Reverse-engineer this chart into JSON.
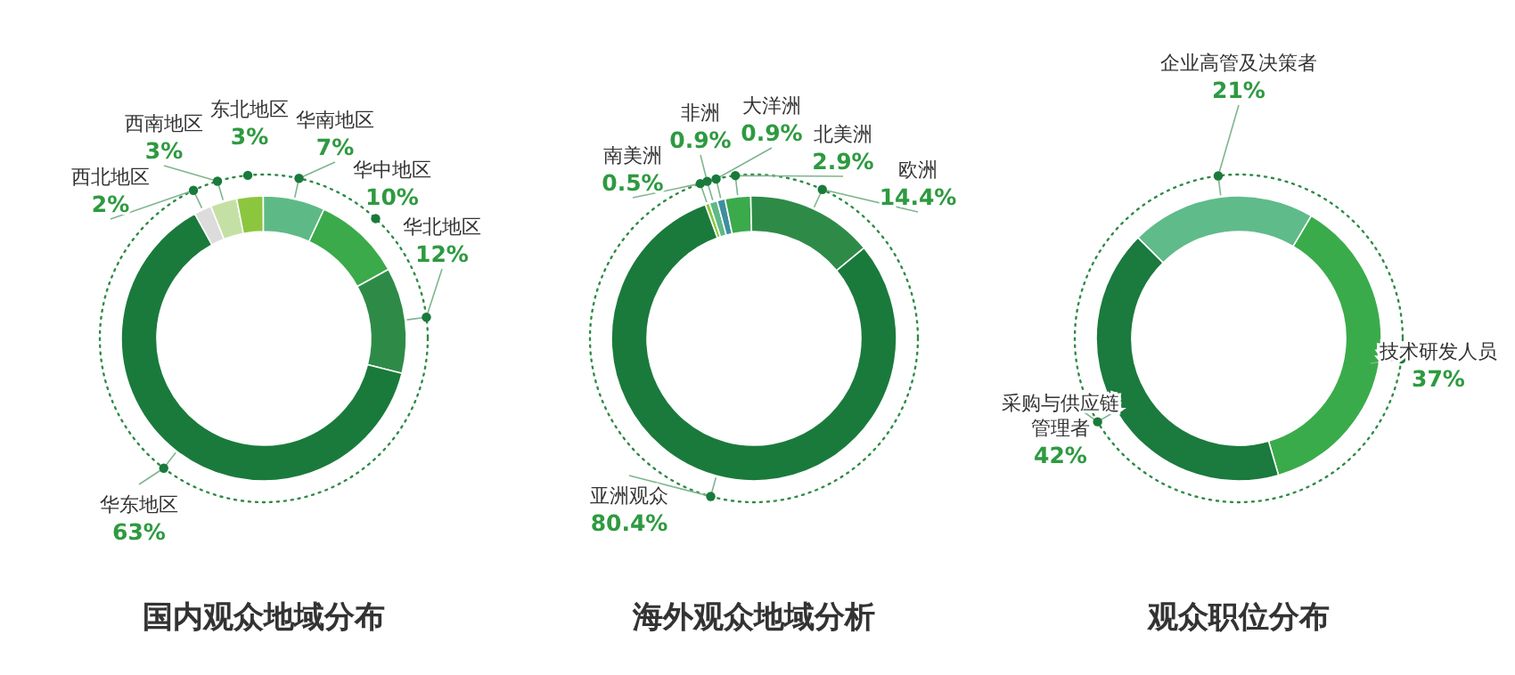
{
  "chart_data": [
    {
      "type": "donut",
      "title": "国内观众地域分布",
      "categories": [
        "西北地区",
        "西南地区",
        "东北地区",
        "华南地区",
        "华中地区",
        "华北地区",
        "华东地区"
      ],
      "values": [
        2,
        3,
        3,
        7,
        10,
        12,
        63
      ],
      "value_labels": [
        "2%",
        "3%",
        "3%",
        "7%",
        "10%",
        "12%",
        "63%"
      ],
      "colors": [
        "#dcdcdc",
        "#c5e0a5",
        "#8cc63f",
        "#5dba86",
        "#3aaa4a",
        "#2e8b47",
        "#1a7a3c"
      ]
    },
    {
      "type": "donut",
      "title": "海外观众地域分析",
      "categories": [
        "南美洲",
        "非洲",
        "大洋洲",
        "北美洲",
        "欧洲",
        "亚洲观众"
      ],
      "values": [
        0.5,
        0.9,
        0.9,
        2.9,
        14.4,
        80.4
      ],
      "value_labels": [
        "0.5%",
        "0.9%",
        "0.9%",
        "2.9%",
        "14.4%",
        "80.4%"
      ],
      "colors": [
        "#8cc63f",
        "#5dba86",
        "#3d8fa0",
        "#3aaa4a",
        "#2e8b47",
        "#1a7a3c"
      ]
    },
    {
      "type": "donut",
      "title": "观众职位分布",
      "categories": [
        "企业高管及决策者",
        "技术研发人员",
        "采购与供应链管理者"
      ],
      "values": [
        21,
        37,
        42
      ],
      "value_labels": [
        "21%",
        "37%",
        "42%"
      ],
      "colors": [
        "#5fbb8a",
        "#3aab4b",
        "#1b7a3d"
      ]
    }
  ]
}
